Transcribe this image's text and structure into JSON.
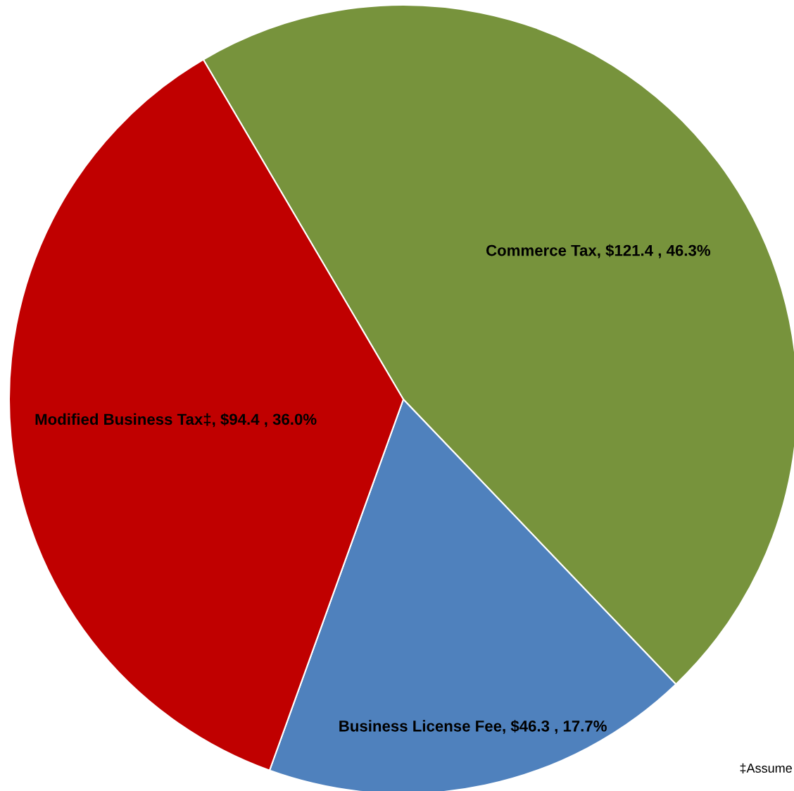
{
  "chart_data": {
    "type": "pie",
    "categories": [
      "Commerce Tax",
      "Business License Fee",
      "Modified Business Tax‡"
    ],
    "values": [
      121.4,
      46.3,
      94.4
    ],
    "value_labels": [
      "$121.4 , 46.3%",
      "$46.3 , 17.7%",
      "$94.4 , 36.0%"
    ],
    "colors": [
      "#77933c",
      "#4f81bd",
      "#c00000"
    ],
    "annotations": [
      "‡Assume"
    ],
    "legend": false
  }
}
